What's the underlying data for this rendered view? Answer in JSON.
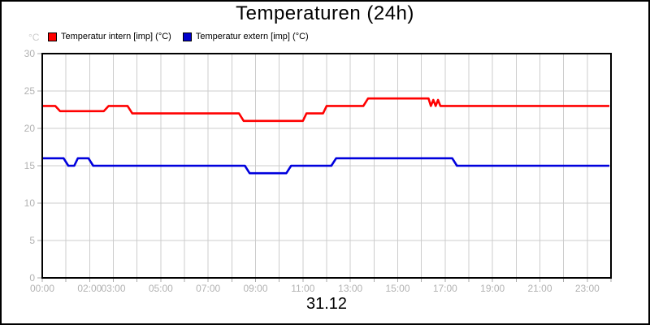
{
  "title": "Temperaturen (24h)",
  "date_label": "31.12",
  "y_axis_unit": "°C",
  "legend": [
    {
      "label": "Temperatur intern [imp] (°C)",
      "color": "#ff0000"
    },
    {
      "label": "Temperatur extern [imp] (°C)",
      "color": "#0000cc"
    }
  ],
  "colors": {
    "grid": "#cccccc",
    "axis_border": "#000000",
    "tick": "#aaaaaa",
    "axis_label": "#b2b2b2",
    "unit_label": "#cccccc",
    "background": "#ffffff"
  },
  "chart_data": {
    "type": "line",
    "title": "Temperaturen (24h)",
    "x_unit": "time of day (HH:MM)",
    "y_unit": "°C",
    "xlim_hours": [
      0,
      24
    ],
    "ylim": [
      0,
      30
    ],
    "yticks": [
      0,
      5,
      10,
      15,
      20,
      25,
      30
    ],
    "x_minor_tick_every_hours": 1,
    "grid": true,
    "legend_position": "top-left",
    "x_labels": [
      {
        "hour": 0,
        "label": "00:00"
      },
      {
        "hour": 2,
        "label": "02:00"
      },
      {
        "hour": 3,
        "label": "03:00"
      },
      {
        "hour": 5,
        "label": "05:00"
      },
      {
        "hour": 7,
        "label": "07:00"
      },
      {
        "hour": 9,
        "label": "09:00"
      },
      {
        "hour": 11,
        "label": "11:00"
      },
      {
        "hour": 13,
        "label": "13:00"
      },
      {
        "hour": 15,
        "label": "15:00"
      },
      {
        "hour": 17,
        "label": "17:00"
      },
      {
        "hour": 19,
        "label": "19:00"
      },
      {
        "hour": 21,
        "label": "21:00"
      },
      {
        "hour": 23,
        "label": "23:00"
      }
    ],
    "series": [
      {
        "name": "Temperatur intern [imp] (°C)",
        "color": "#ff0000",
        "points_hour_degC": [
          [
            0,
            23
          ],
          [
            0.55,
            23
          ],
          [
            0.75,
            22.3
          ],
          [
            2.6,
            22.3
          ],
          [
            2.8,
            23
          ],
          [
            3.6,
            23
          ],
          [
            3.8,
            22
          ],
          [
            8.3,
            22
          ],
          [
            8.5,
            21
          ],
          [
            11.0,
            21
          ],
          [
            11.15,
            22
          ],
          [
            11.85,
            22
          ],
          [
            12.0,
            23
          ],
          [
            13.55,
            23
          ],
          [
            13.75,
            24
          ],
          [
            16.3,
            24
          ],
          [
            16.4,
            23
          ],
          [
            16.5,
            23.8
          ],
          [
            16.6,
            23
          ],
          [
            16.7,
            23.8
          ],
          [
            16.8,
            23
          ],
          [
            23.93,
            23
          ]
        ]
      },
      {
        "name": "Temperatur extern [imp] (°C)",
        "color": "#0000dd",
        "points_hour_degC": [
          [
            0,
            16
          ],
          [
            0.9,
            16
          ],
          [
            1.1,
            15
          ],
          [
            1.35,
            15
          ],
          [
            1.5,
            16
          ],
          [
            1.95,
            16
          ],
          [
            2.15,
            15
          ],
          [
            8.55,
            15
          ],
          [
            8.75,
            14
          ],
          [
            10.3,
            14
          ],
          [
            10.5,
            15
          ],
          [
            12.2,
            15
          ],
          [
            12.4,
            16
          ],
          [
            17.3,
            16
          ],
          [
            17.5,
            15
          ],
          [
            23.93,
            15
          ]
        ]
      }
    ]
  }
}
